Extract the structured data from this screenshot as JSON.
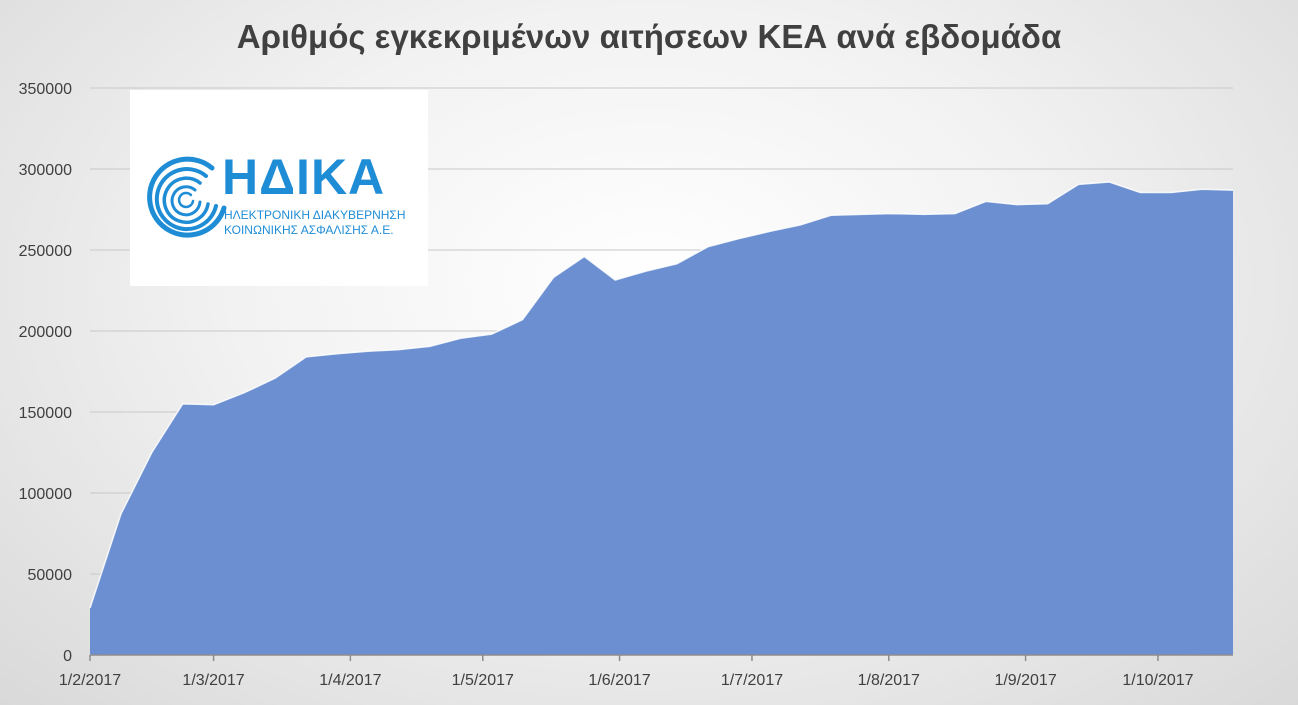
{
  "chart_data": {
    "type": "area",
    "title": "Αριθμός εγκεκριμένων αιτήσεων ΚΕΑ ανά εβδομάδα",
    "xlabel": "",
    "ylabel": "",
    "ylim": [
      0,
      350000
    ],
    "yticks": [
      0,
      50000,
      100000,
      150000,
      200000,
      250000,
      300000,
      350000
    ],
    "xticks": [
      "1/2/2017",
      "1/3/2017",
      "1/4/2017",
      "1/5/2017",
      "1/6/2017",
      "1/7/2017",
      "1/8/2017",
      "1/9/2017",
      "1/10/2017"
    ],
    "grid": true,
    "color": "#6b8fd0",
    "series": [
      {
        "x": [
          "2017-02-01",
          "2017-02-08",
          "2017-02-15",
          "2017-02-22",
          "2017-03-01",
          "2017-03-08",
          "2017-03-15",
          "2017-03-22",
          "2017-03-29",
          "2017-04-05",
          "2017-04-12",
          "2017-04-19",
          "2017-04-26",
          "2017-05-03",
          "2017-05-10",
          "2017-05-17",
          "2017-05-24",
          "2017-05-31",
          "2017-06-07",
          "2017-06-14",
          "2017-06-21",
          "2017-06-28",
          "2017-07-05",
          "2017-07-12",
          "2017-07-19",
          "2017-07-26",
          "2017-08-02",
          "2017-08-09",
          "2017-08-16",
          "2017-08-23",
          "2017-08-30",
          "2017-09-06",
          "2017-09-13",
          "2017-09-20",
          "2017-09-27",
          "2017-10-04",
          "2017-10-11",
          "2017-10-18"
        ],
        "values": [
          29000,
          87000,
          125000,
          155000,
          154500,
          162000,
          171000,
          184000,
          186000,
          187500,
          188500,
          190500,
          195500,
          198000,
          207000,
          233000,
          246000,
          231500,
          237000,
          241500,
          252000,
          257000,
          261500,
          265500,
          271500,
          272000,
          272500,
          272000,
          272500,
          280000,
          278000,
          278500,
          290500,
          292000,
          285500,
          285500,
          287500,
          287000
        ]
      }
    ]
  },
  "logo": {
    "name": "ΗΔΙΚΑ",
    "line1": "ΗΛΕΚΤΡΟΝΙΚΗ ΔΙΑΚΥΒΕΡΝΗΣΗ",
    "line2": "ΚΟΙΝΩΝΙΚΗΣ ΑΣΦΑΛΙΣΗΣ Α.Ε.",
    "color": "#1f8dd6"
  }
}
